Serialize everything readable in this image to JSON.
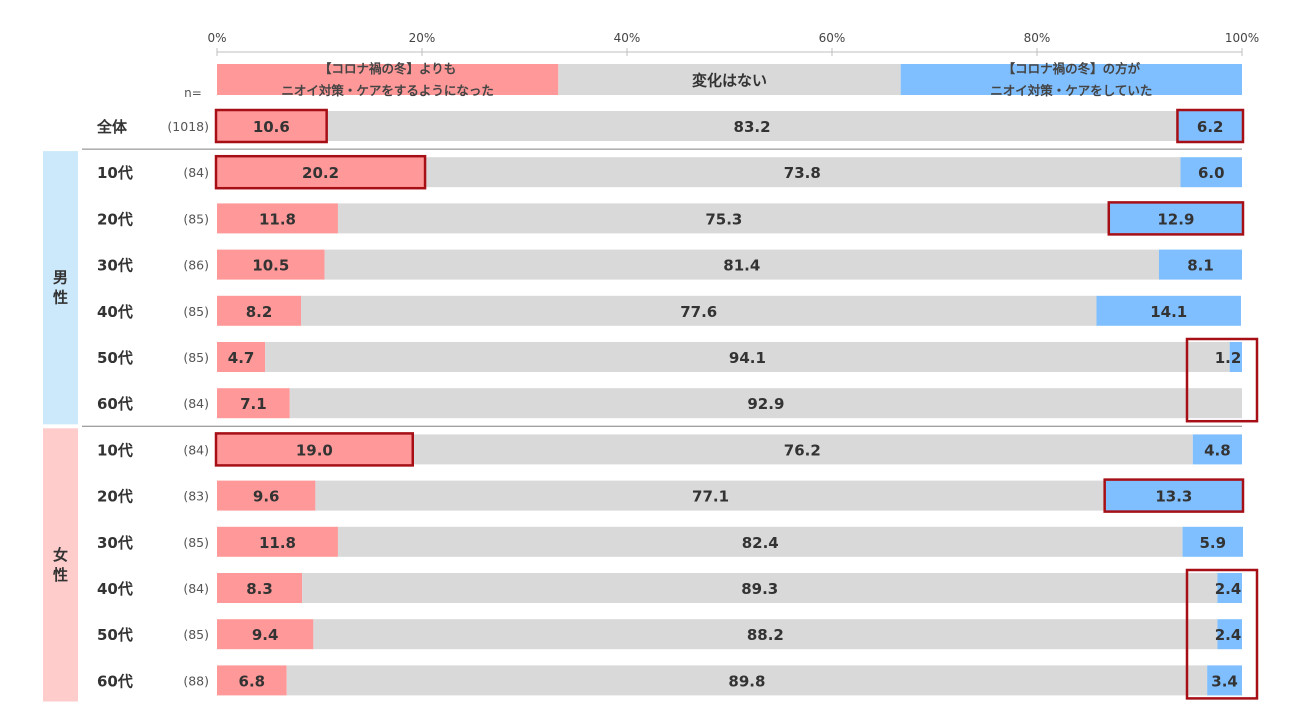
{
  "chart_data": {
    "type": "bar",
    "stacked": true,
    "percent_stacked": true,
    "n_header": "n=",
    "x_ticks": [
      "0%",
      "20%",
      "40%",
      "60%",
      "80%",
      "100%"
    ],
    "xlim": [
      0,
      100
    ],
    "series": [
      {
        "name": "【コロナ禍の冬】よりも\nニオイ対策・ケアをするようになった",
        "color": "#ff9999"
      },
      {
        "name": "変化はない",
        "color": "#d9d9d9"
      },
      {
        "name": "【コロナ禍の冬】の方が\nニオイ対策・ケアをしていた",
        "color": "#80bfff"
      }
    ],
    "groups": [
      {
        "label": "男性",
        "color": "#cce9fb",
        "rows": [
          1,
          6
        ]
      },
      {
        "label": "女性",
        "color": "#ffcccc",
        "rows": [
          7,
          12
        ]
      }
    ],
    "rows": [
      {
        "label": "全体",
        "n": "(1018)",
        "values": [
          10.6,
          83.2,
          6.2
        ],
        "labels": [
          "10.6",
          "83.2",
          "6.2"
        ],
        "highlight": [
          true,
          false,
          true
        ]
      },
      {
        "label": "10代",
        "n": "(84)",
        "values": [
          20.2,
          73.8,
          6.0
        ],
        "labels": [
          "20.2",
          "73.8",
          "6.0"
        ],
        "highlight": [
          true,
          false,
          false
        ]
      },
      {
        "label": "20代",
        "n": "(85)",
        "values": [
          11.8,
          75.3,
          12.9
        ],
        "labels": [
          "11.8",
          "75.3",
          "12.9"
        ],
        "highlight": [
          false,
          false,
          true
        ]
      },
      {
        "label": "30代",
        "n": "(86)",
        "values": [
          10.5,
          81.4,
          8.1
        ],
        "labels": [
          "10.5",
          "81.4",
          "8.1"
        ],
        "highlight": [
          false,
          false,
          false
        ]
      },
      {
        "label": "40代",
        "n": "(85)",
        "values": [
          8.2,
          77.6,
          14.1
        ],
        "labels": [
          "8.2",
          "77.6",
          "14.1"
        ],
        "highlight": [
          false,
          false,
          false
        ]
      },
      {
        "label": "50代",
        "n": "(85)",
        "values": [
          4.7,
          94.1,
          1.2
        ],
        "labels": [
          "4.7",
          "94.1",
          "1.2"
        ],
        "highlight": [
          false,
          false,
          false
        ]
      },
      {
        "label": "60代",
        "n": "(84)",
        "values": [
          7.1,
          92.9,
          0.0
        ],
        "labels": [
          "7.1",
          "92.9",
          ""
        ],
        "highlight": [
          false,
          false,
          false
        ]
      },
      {
        "label": "10代",
        "n": "(84)",
        "values": [
          19.0,
          76.2,
          4.8
        ],
        "labels": [
          "19.0",
          "76.2",
          "4.8"
        ],
        "highlight": [
          true,
          false,
          false
        ]
      },
      {
        "label": "20代",
        "n": "(83)",
        "values": [
          9.6,
          77.1,
          13.3
        ],
        "labels": [
          "9.6",
          "77.1",
          "13.3"
        ],
        "highlight": [
          false,
          false,
          true
        ]
      },
      {
        "label": "30代",
        "n": "(85)",
        "values": [
          11.8,
          82.4,
          5.9
        ],
        "labels": [
          "11.8",
          "82.4",
          "5.9"
        ],
        "highlight": [
          false,
          false,
          false
        ]
      },
      {
        "label": "40代",
        "n": "(84)",
        "values": [
          8.3,
          89.3,
          2.4
        ],
        "labels": [
          "8.3",
          "89.3",
          "2.4"
        ],
        "highlight": [
          false,
          false,
          false
        ]
      },
      {
        "label": "50代",
        "n": "(85)",
        "values": [
          9.4,
          88.2,
          2.4
        ],
        "labels": [
          "9.4",
          "88.2",
          "2.4"
        ],
        "highlight": [
          false,
          false,
          false
        ]
      },
      {
        "label": "60代",
        "n": "(88)",
        "values": [
          6.8,
          89.8,
          3.4
        ],
        "labels": [
          "6.8",
          "89.8",
          "3.4"
        ],
        "highlight": [
          false,
          false,
          false
        ]
      }
    ],
    "highlight_groups": [
      {
        "series": 2,
        "rows": [
          5,
          6
        ]
      },
      {
        "series": 2,
        "rows": [
          10,
          12
        ]
      }
    ],
    "highlight_color": "#a50f15"
  }
}
